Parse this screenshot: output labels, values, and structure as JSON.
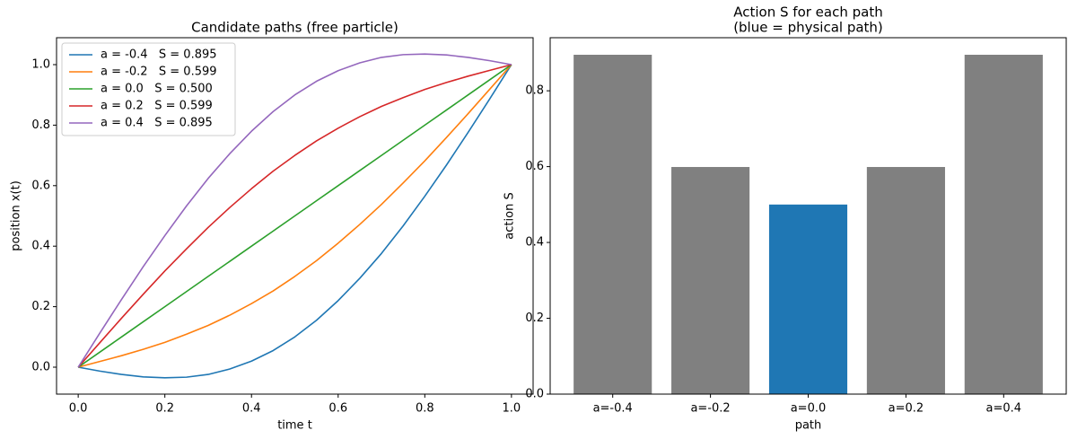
{
  "chart_data": [
    {
      "type": "line",
      "title": "Candidate paths (free particle)",
      "xlabel": "time t",
      "ylabel": "position x(t)",
      "x": [
        0,
        0.05,
        0.1,
        0.15,
        0.2,
        0.25,
        0.3,
        0.35,
        0.4,
        0.45,
        0.5,
        0.55,
        0.6,
        0.65,
        0.7,
        0.75,
        0.8,
        0.85,
        0.9,
        0.95,
        1
      ],
      "series": [
        {
          "name": "a = -0.4   S = 0.895",
          "color": "#1f77b4",
          "values": [
            0,
            -0.013,
            -0.024,
            -0.032,
            -0.035,
            -0.033,
            -0.024,
            -0.006,
            0.02,
            0.055,
            0.1,
            0.155,
            0.22,
            0.294,
            0.376,
            0.467,
            0.565,
            0.668,
            0.776,
            0.887,
            1
          ]
        },
        {
          "name": "a = -0.2   S = 0.599",
          "color": "#ff7f0e",
          "values": [
            0,
            0.019,
            0.038,
            0.059,
            0.082,
            0.109,
            0.138,
            0.172,
            0.21,
            0.252,
            0.3,
            0.352,
            0.41,
            0.472,
            0.538,
            0.609,
            0.682,
            0.759,
            0.838,
            0.919,
            1
          ]
        },
        {
          "name": "a = 0.0   S = 0.500",
          "color": "#2ca02c",
          "values": [
            0,
            0.05,
            0.1,
            0.15,
            0.2,
            0.25,
            0.3,
            0.35,
            0.4,
            0.45,
            0.5,
            0.55,
            0.6,
            0.65,
            0.7,
            0.75,
            0.8,
            0.85,
            0.9,
            0.95,
            1
          ]
        },
        {
          "name": "a = 0.2   S = 0.599",
          "color": "#d62728",
          "values": [
            0,
            0.081,
            0.162,
            0.241,
            0.318,
            0.391,
            0.462,
            0.528,
            0.59,
            0.648,
            0.7,
            0.748,
            0.79,
            0.828,
            0.862,
            0.891,
            0.918,
            0.941,
            0.962,
            0.981,
            1
          ]
        },
        {
          "name": "a = 0.4   S = 0.895",
          "color": "#9467bd",
          "values": [
            0,
            0.113,
            0.224,
            0.332,
            0.435,
            0.533,
            0.624,
            0.706,
            0.78,
            0.845,
            0.9,
            0.945,
            0.98,
            1.006,
            1.024,
            1.033,
            1.035,
            1.032,
            1.024,
            1.013,
            1
          ]
        }
      ],
      "xlim": [
        -0.05,
        1.05
      ],
      "ylim": [
        -0.089,
        1.089
      ],
      "xticks": [
        {
          "value": 0,
          "label": "0.0"
        },
        {
          "value": 0.2,
          "label": "0.2"
        },
        {
          "value": 0.4,
          "label": "0.4"
        },
        {
          "value": 0.6,
          "label": "0.6"
        },
        {
          "value": 0.8,
          "label": "0.8"
        },
        {
          "value": 1,
          "label": "1.0"
        }
      ],
      "yticks": [
        {
          "value": 0,
          "label": "0.0"
        },
        {
          "value": 0.2,
          "label": "0.2"
        },
        {
          "value": 0.4,
          "label": "0.4"
        },
        {
          "value": 0.6,
          "label": "0.6"
        },
        {
          "value": 0.8,
          "label": "0.8"
        },
        {
          "value": 1,
          "label": "1.0"
        }
      ],
      "legend": "upper left"
    },
    {
      "type": "bar",
      "title": "Action S for each path",
      "subtitle": "(blue = physical path)",
      "xlabel": "path",
      "ylabel": "action S",
      "categories": [
        "a=-0.4",
        "a=-0.2",
        "a=0.0",
        "a=0.2",
        "a=0.4"
      ],
      "values": [
        0.895,
        0.599,
        0.5,
        0.599,
        0.895
      ],
      "colors": [
        "#808080",
        "#808080",
        "#1f77b4",
        "#808080",
        "#808080"
      ],
      "ylim": [
        0,
        0.94
      ],
      "yticks": [
        {
          "value": 0,
          "label": "0.0"
        },
        {
          "value": 0.2,
          "label": "0.2"
        },
        {
          "value": 0.4,
          "label": "0.4"
        },
        {
          "value": 0.6,
          "label": "0.6"
        },
        {
          "value": 0.8,
          "label": "0.8"
        }
      ]
    }
  ]
}
